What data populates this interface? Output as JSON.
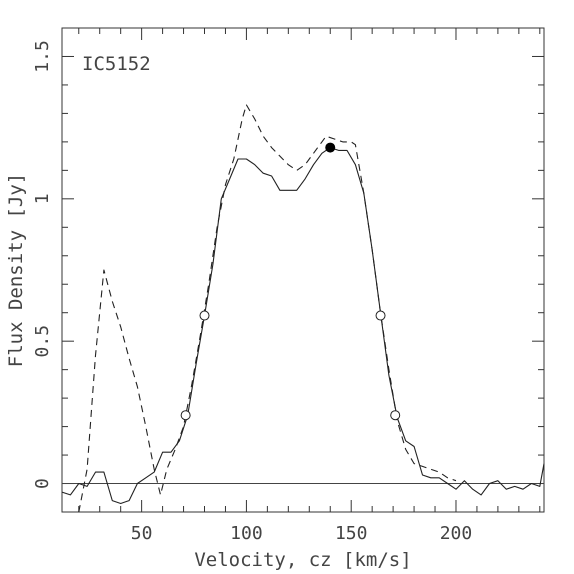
{
  "chart_data": {
    "type": "line",
    "title": "",
    "annotation": "IC5152",
    "xlabel": "Velocity, cz [km/s]",
    "ylabel": "Flux Density [Jy]",
    "xlim": [
      12,
      242
    ],
    "ylim": [
      -0.1,
      1.6
    ],
    "x_ticks": [
      50,
      100,
      150,
      200
    ],
    "x_tick_labels": [
      "50",
      "100",
      "150",
      "200"
    ],
    "y_ticks": [
      0,
      0.5,
      1,
      1.5
    ],
    "y_tick_labels": [
      "0",
      "0.5",
      "1",
      "1.5"
    ],
    "grid": false,
    "legend": "none",
    "series": [
      {
        "style": "solid",
        "color": "#222222",
        "points": [
          [
            12,
            -0.03
          ],
          [
            16,
            -0.04
          ],
          [
            20,
            0.0
          ],
          [
            24,
            -0.01
          ],
          [
            28,
            0.04
          ],
          [
            32,
            0.04
          ],
          [
            36,
            -0.06
          ],
          [
            40,
            -0.07
          ],
          [
            44,
            -0.06
          ],
          [
            48,
            0.0
          ],
          [
            52,
            0.02
          ],
          [
            56,
            0.04
          ],
          [
            60,
            0.11
          ],
          [
            64,
            0.11
          ],
          [
            68,
            0.15
          ],
          [
            72,
            0.24
          ],
          [
            76,
            0.42
          ],
          [
            80,
            0.59
          ],
          [
            84,
            0.77
          ],
          [
            88,
            1.0
          ],
          [
            92,
            1.07
          ],
          [
            96,
            1.14
          ],
          [
            100,
            1.14
          ],
          [
            104,
            1.12
          ],
          [
            108,
            1.09
          ],
          [
            112,
            1.08
          ],
          [
            116,
            1.03
          ],
          [
            120,
            1.03
          ],
          [
            124,
            1.03
          ],
          [
            128,
            1.07
          ],
          [
            132,
            1.12
          ],
          [
            136,
            1.16
          ],
          [
            140,
            1.18
          ],
          [
            144,
            1.17
          ],
          [
            148,
            1.17
          ],
          [
            152,
            1.12
          ],
          [
            156,
            1.02
          ],
          [
            160,
            0.82
          ],
          [
            164,
            0.6
          ],
          [
            168,
            0.38
          ],
          [
            172,
            0.23
          ],
          [
            176,
            0.15
          ],
          [
            180,
            0.13
          ],
          [
            184,
            0.03
          ],
          [
            188,
            0.02
          ],
          [
            192,
            0.02
          ],
          [
            196,
            0.0
          ],
          [
            200,
            -0.02
          ],
          [
            204,
            0.01
          ],
          [
            208,
            -0.02
          ],
          [
            212,
            -0.04
          ],
          [
            216,
            0.0
          ],
          [
            220,
            0.01
          ],
          [
            224,
            -0.02
          ],
          [
            228,
            -0.01
          ],
          [
            232,
            -0.02
          ],
          [
            236,
            0.0
          ],
          [
            240,
            -0.01
          ],
          [
            242,
            0.07
          ]
        ]
      },
      {
        "style": "dashed",
        "color": "#222222",
        "points": [
          [
            20,
            -0.1
          ],
          [
            24,
            0.05
          ],
          [
            28,
            0.45
          ],
          [
            32,
            0.75
          ],
          [
            36,
            0.64
          ],
          [
            40,
            0.55
          ],
          [
            44,
            0.44
          ],
          [
            48,
            0.34
          ],
          [
            52,
            0.2
          ],
          [
            56,
            0.05
          ],
          [
            59,
            -0.04
          ],
          [
            62,
            0.05
          ],
          [
            66,
            0.12
          ],
          [
            70,
            0.2
          ],
          [
            74,
            0.35
          ],
          [
            78,
            0.52
          ],
          [
            82,
            0.7
          ],
          [
            86,
            0.9
          ],
          [
            90,
            1.05
          ],
          [
            94,
            1.14
          ],
          [
            98,
            1.28
          ],
          [
            100,
            1.33
          ],
          [
            104,
            1.28
          ],
          [
            108,
            1.22
          ],
          [
            112,
            1.18
          ],
          [
            116,
            1.15
          ],
          [
            120,
            1.12
          ],
          [
            124,
            1.1
          ],
          [
            128,
            1.12
          ],
          [
            132,
            1.16
          ],
          [
            136,
            1.2
          ],
          [
            138,
            1.22
          ],
          [
            142,
            1.21
          ],
          [
            146,
            1.2
          ],
          [
            150,
            1.2
          ],
          [
            152,
            1.19
          ],
          [
            156,
            1.02
          ],
          [
            160,
            0.82
          ],
          [
            164,
            0.6
          ],
          [
            168,
            0.4
          ],
          [
            172,
            0.22
          ],
          [
            176,
            0.12
          ],
          [
            180,
            0.07
          ],
          [
            184,
            0.06
          ],
          [
            188,
            0.05
          ],
          [
            192,
            0.04
          ],
          [
            196,
            0.02
          ],
          [
            200,
            0.01
          ]
        ]
      }
    ],
    "baseline": {
      "style": "solid",
      "color": "#444444",
      "points": [
        [
          12,
          0.0
        ],
        [
          242,
          0.0
        ]
      ]
    },
    "open_markers": [
      [
        71,
        0.24
      ],
      [
        80,
        0.59
      ],
      [
        164,
        0.59
      ],
      [
        171,
        0.24
      ]
    ],
    "filled_markers": [
      [
        140,
        1.18
      ]
    ]
  }
}
